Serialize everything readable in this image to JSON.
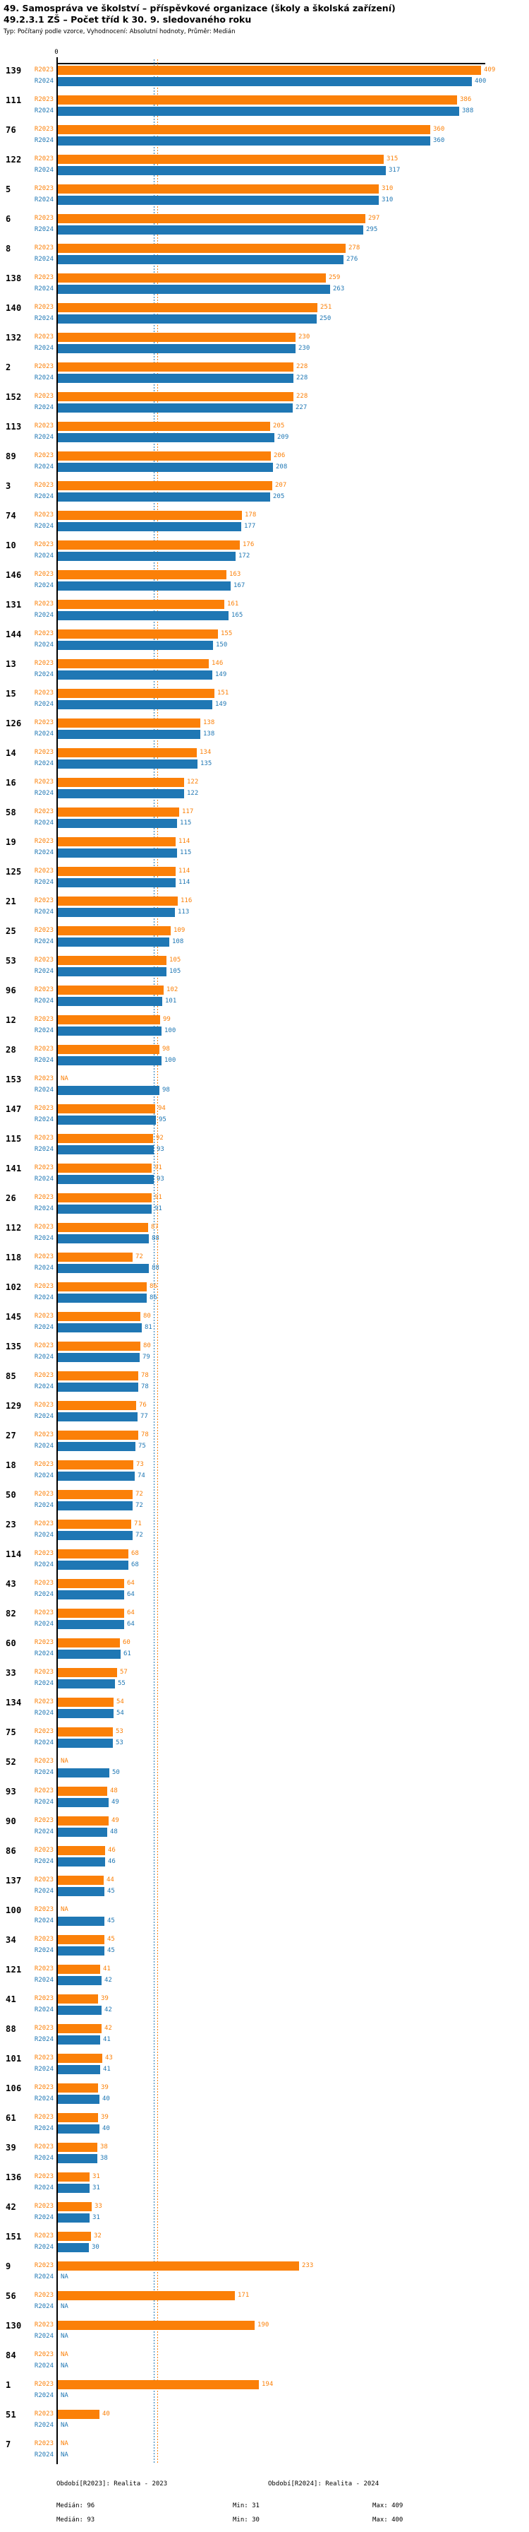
{
  "title": {
    "line1": "49. Samospráva ve školství – příspěvkové organizace (školy a školská zařízení)",
    "line2": "49.2.3.1 ZŠ – Počet tříd k 30. 9. sledovaného roku",
    "line3": "Typ: Počítaný podle vzorce, Vyhodnocení: Absolutní hodnoty, Průměr: Medián"
  },
  "axis": {
    "zero_label": "0"
  },
  "na_label": "NA",
  "colors": {
    "r2023": "#FB8008",
    "r2024": "#1F77B4",
    "axis": "#000000"
  },
  "chart_data": {
    "type": "bar",
    "orientation": "horizontal",
    "title": "49.2.3.1 ZŠ – Počet tříd k 30. 9. sledovaného roku",
    "xlabel": "",
    "ylabel": "",
    "xlim": [
      0,
      409
    ],
    "grid": false,
    "legend_position": "bottom",
    "categories": [
      "139",
      "111",
      "76",
      "122",
      "5",
      "6",
      "8",
      "138",
      "140",
      "132",
      "2",
      "152",
      "113",
      "89",
      "3",
      "74",
      "10",
      "146",
      "131",
      "144",
      "13",
      "15",
      "126",
      "14",
      "16",
      "58",
      "19",
      "125",
      "21",
      "25",
      "53",
      "96",
      "12",
      "28",
      "153",
      "147",
      "115",
      "141",
      "26",
      "112",
      "118",
      "102",
      "145",
      "135",
      "85",
      "129",
      "27",
      "18",
      "50",
      "23",
      "114",
      "43",
      "82",
      "60",
      "33",
      "134",
      "75",
      "52",
      "93",
      "90",
      "86",
      "137",
      "100",
      "34",
      "121",
      "41",
      "88",
      "101",
      "106",
      "61",
      "39",
      "136",
      "42",
      "151",
      "9",
      "56",
      "130",
      "84",
      "1",
      "51",
      "7"
    ],
    "series": [
      {
        "name": "R2023",
        "color": "#FB8008",
        "values": [
          409,
          386,
          360,
          315,
          310,
          297,
          278,
          259,
          251,
          230,
          228,
          228,
          205,
          206,
          207,
          178,
          176,
          163,
          161,
          155,
          146,
          151,
          138,
          134,
          122,
          117,
          114,
          114,
          116,
          109,
          105,
          102,
          99,
          98,
          null,
          94,
          92,
          91,
          91,
          87,
          72,
          86,
          80,
          80,
          78,
          76,
          78,
          73,
          72,
          71,
          68,
          64,
          64,
          60,
          57,
          54,
          53,
          null,
          48,
          49,
          46,
          44,
          null,
          45,
          41,
          39,
          42,
          43,
          39,
          39,
          38,
          31,
          33,
          32,
          233,
          171,
          190,
          null,
          194,
          40,
          null
        ]
      },
      {
        "name": "R2024",
        "color": "#1F77B4",
        "values": [
          400,
          388,
          360,
          317,
          310,
          295,
          276,
          263,
          250,
          230,
          228,
          227,
          209,
          208,
          205,
          177,
          172,
          167,
          165,
          150,
          149,
          149,
          138,
          135,
          122,
          115,
          115,
          114,
          113,
          108,
          105,
          101,
          100,
          100,
          98,
          95,
          93,
          93,
          91,
          88,
          88,
          86,
          81,
          79,
          78,
          77,
          75,
          74,
          72,
          72,
          68,
          64,
          64,
          61,
          55,
          54,
          53,
          50,
          49,
          48,
          46,
          45,
          45,
          45,
          42,
          42,
          41,
          41,
          40,
          40,
          38,
          31,
          31,
          30,
          null,
          null,
          null,
          null,
          null,
          null,
          null
        ]
      }
    ],
    "medians": {
      "R2023": 96,
      "R2024": 93
    }
  },
  "footer": {
    "r2023": {
      "period": "Období[R2023]: Realita - 2023",
      "median": "Medián: 96",
      "min": "Min: 31",
      "max": "Max: 409"
    },
    "r2024": {
      "period": "Období[R2024]: Realita - 2024",
      "median": "Medián: 93",
      "min": "Min: 30",
      "max": "Max: 400"
    }
  }
}
